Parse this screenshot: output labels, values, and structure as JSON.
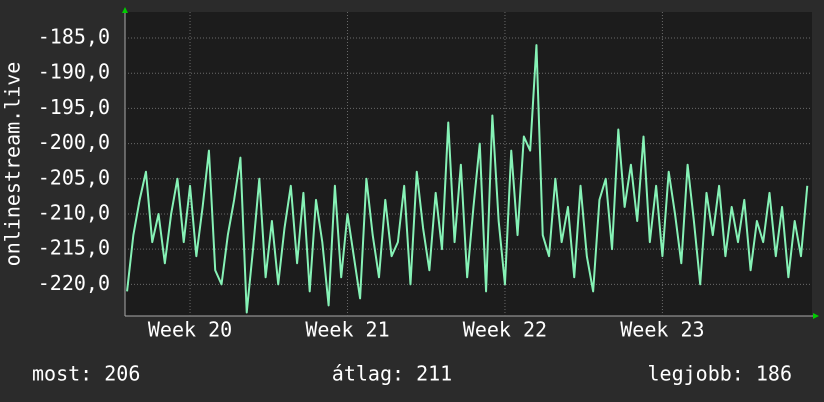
{
  "chart_data": {
    "type": "line",
    "ylabel": "onlinestream.live",
    "ylim": [
      -224.5,
      -181.3
    ],
    "yticks": [
      {
        "value": -185,
        "label": "-185,0"
      },
      {
        "value": -190,
        "label": "-190,0"
      },
      {
        "value": -195,
        "label": "-195,0"
      },
      {
        "value": -200,
        "label": "-200,0"
      },
      {
        "value": -205,
        "label": "-205,0"
      },
      {
        "value": -210,
        "label": "-210,0"
      },
      {
        "value": -215,
        "label": "-215,0"
      },
      {
        "value": -220,
        "label": "-220,0"
      }
    ],
    "xlim": [
      19.587,
      23.95
    ],
    "xticks": [
      {
        "value": 20,
        "label": "Week 20"
      },
      {
        "value": 21,
        "label": "Week 21"
      },
      {
        "value": 22,
        "label": "Week 22"
      },
      {
        "value": 23,
        "label": "Week 23"
      }
    ],
    "grid": true,
    "color": "#86f2b6",
    "x": [
      19.6,
      19.64,
      19.68,
      19.72,
      19.76,
      19.8,
      19.84,
      19.88,
      19.92,
      19.96,
      20.0,
      20.04,
      20.08,
      20.12,
      20.16,
      20.2,
      20.24,
      20.28,
      20.32,
      20.36,
      20.4,
      20.44,
      20.48,
      20.52,
      20.56,
      20.6,
      20.64,
      20.68,
      20.72,
      20.76,
      20.8,
      20.84,
      20.88,
      20.92,
      20.96,
      21.0,
      21.04,
      21.08,
      21.12,
      21.16,
      21.2,
      21.24,
      21.28,
      21.32,
      21.36,
      21.4,
      21.44,
      21.48,
      21.52,
      21.56,
      21.6,
      21.64,
      21.68,
      21.72,
      21.76,
      21.8,
      21.84,
      21.88,
      21.92,
      21.96,
      22.0,
      22.04,
      22.08,
      22.12,
      22.16,
      22.2,
      22.24,
      22.28,
      22.32,
      22.36,
      22.4,
      22.44,
      22.48,
      22.52,
      22.56,
      22.6,
      22.64,
      22.68,
      22.72,
      22.76,
      22.8,
      22.84,
      22.88,
      22.92,
      22.96,
      23.0,
      23.04,
      23.08,
      23.12,
      23.16,
      23.2,
      23.24,
      23.28,
      23.32,
      23.36,
      23.4,
      23.44,
      23.48,
      23.52,
      23.56,
      23.6,
      23.64,
      23.68,
      23.72,
      23.76,
      23.8,
      23.84,
      23.88,
      23.92
    ],
    "values": [
      -221,
      -213,
      -208,
      -204,
      -214,
      -210,
      -217,
      -210,
      -205,
      -214,
      -206,
      -216,
      -209,
      -201,
      -218,
      -220,
      -213,
      -208,
      -202,
      -224,
      -215,
      -205,
      -219,
      -211,
      -220,
      -212,
      -206,
      -217,
      -207,
      -221,
      -208,
      -214,
      -223,
      -206,
      -219,
      -210,
      -216,
      -222,
      -205,
      -213,
      -219,
      -208,
      -216,
      -214,
      -206,
      -220,
      -204,
      -212,
      -218,
      -207,
      -215,
      -197,
      -214,
      -203,
      -219,
      -209,
      -200,
      -221,
      -196,
      -211,
      -220,
      -201,
      -213,
      -199,
      -201,
      -186,
      -213,
      -216,
      -205,
      -214,
      -209,
      -219,
      -206,
      -216,
      -221,
      -208,
      -205,
      -215,
      -198,
      -209,
      -203,
      -211,
      -199,
      -214,
      -206,
      -216,
      -204,
      -210,
      -217,
      -203,
      -211,
      -220,
      -207,
      -213,
      -206,
      -216,
      -209,
      -214,
      -208,
      -218,
      -211,
      -214,
      -207,
      -216,
      -209,
      -219,
      -211,
      -216,
      -206
    ],
    "footer": [
      "most: 206",
      "átlag: 211",
      "legjobb: 186"
    ]
  }
}
